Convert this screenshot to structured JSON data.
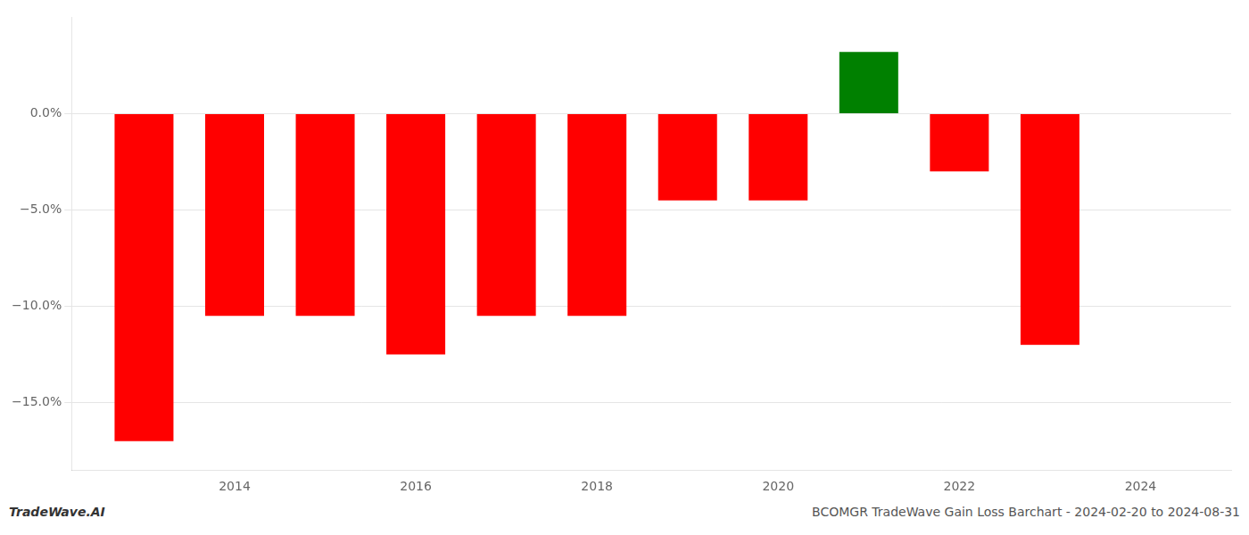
{
  "chart_data": {
    "type": "bar",
    "x": [
      2013,
      2014,
      2015,
      2016,
      2017,
      2018,
      2019,
      2020,
      2021,
      2022,
      2023
    ],
    "values": [
      -17.0,
      -10.5,
      -10.5,
      -12.5,
      -10.5,
      -10.5,
      -4.5,
      -4.5,
      3.2,
      -3.0,
      -12.0
    ],
    "colors": [
      "#ff0000",
      "#ff0000",
      "#ff0000",
      "#ff0000",
      "#ff0000",
      "#ff0000",
      "#ff0000",
      "#ff0000",
      "#008000",
      "#ff0000",
      "#ff0000"
    ],
    "xlim": [
      2012.2,
      2025.0
    ],
    "xticks": [
      2014,
      2016,
      2018,
      2020,
      2022,
      2024
    ],
    "ylim": [
      -18.5,
      5.0
    ],
    "yticks": [
      {
        "value": 0.0,
        "label": "0.0%"
      },
      {
        "value": -5.0,
        "label": "−5.0%"
      },
      {
        "value": -10.0,
        "label": "−10.0%"
      },
      {
        "value": -15.0,
        "label": "−15.0%"
      }
    ],
    "grid": "y",
    "annotations": [
      "TradeWave.AI",
      "BCOMGR TradeWave Gain Loss Barchart - 2024-02-20 to 2024-08-31"
    ]
  }
}
